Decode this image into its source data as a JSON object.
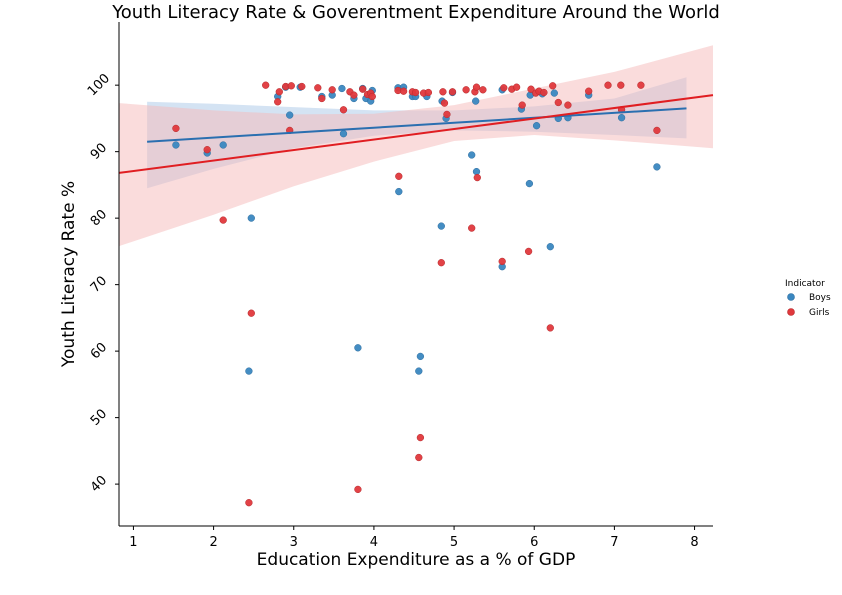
{
  "chart_data": {
    "type": "scatter",
    "title": "Youth Literacy Rate & Goverentment Expenditure Around the World",
    "xlabel": "Education Expenditure as a % of GDP",
    "ylabel": "Youth Literacy Rate %",
    "xlim": [
      0.82,
      8.23
    ],
    "ylim": [
      33.7,
      109.5
    ],
    "xticks": [
      "1",
      "2",
      "3",
      "4",
      "5",
      "6",
      "7",
      "8"
    ],
    "yticks": [
      "40",
      "50",
      "60",
      "70",
      "80",
      "90",
      "100"
    ],
    "grid": false,
    "legend": {
      "title": "Indicator",
      "placement": "right",
      "entries": [
        "Boys",
        "Girls"
      ]
    },
    "series": [
      {
        "name": "Boys",
        "color": "#3a87c0",
        "line_color": "#2a6fb0",
        "band_color": "#a9c8e8",
        "regression": {
          "x": [
            1.17,
            7.9
          ],
          "y": [
            91.5,
            96.5
          ]
        },
        "band": {
          "x": [
            1.17,
            2.0,
            3.0,
            4.0,
            5.0,
            6.0,
            7.0,
            7.9
          ],
          "upper": [
            97.5,
            97.2,
            96.7,
            96.2,
            96.2,
            96.8,
            98.0,
            101.2
          ],
          "lower": [
            84.5,
            87.4,
            90.5,
            92.4,
            93.2,
            93.0,
            92.5,
            92.0
          ]
        },
        "points": [
          {
            "x": 1.53,
            "y": 91.0
          },
          {
            "x": 1.92,
            "y": 89.8
          },
          {
            "x": 2.12,
            "y": 91.0
          },
          {
            "x": 2.44,
            "y": 57.0
          },
          {
            "x": 2.47,
            "y": 80.0
          },
          {
            "x": 2.8,
            "y": 98.3
          },
          {
            "x": 2.9,
            "y": 99.7
          },
          {
            "x": 2.95,
            "y": 95.5
          },
          {
            "x": 3.08,
            "y": 99.7
          },
          {
            "x": 3.35,
            "y": 98.3
          },
          {
            "x": 3.48,
            "y": 98.5
          },
          {
            "x": 3.6,
            "y": 99.5
          },
          {
            "x": 3.62,
            "y": 92.7
          },
          {
            "x": 3.75,
            "y": 98.0
          },
          {
            "x": 3.8,
            "y": 60.5
          },
          {
            "x": 3.86,
            "y": 99.5
          },
          {
            "x": 3.9,
            "y": 98.0
          },
          {
            "x": 3.96,
            "y": 97.6
          },
          {
            "x": 3.98,
            "y": 99.2
          },
          {
            "x": 4.3,
            "y": 99.6
          },
          {
            "x": 4.31,
            "y": 84.0
          },
          {
            "x": 4.37,
            "y": 99.7
          },
          {
            "x": 4.48,
            "y": 98.3
          },
          {
            "x": 4.52,
            "y": 98.3
          },
          {
            "x": 4.56,
            "y": 57.0
          },
          {
            "x": 4.58,
            "y": 59.2
          },
          {
            "x": 4.66,
            "y": 98.3
          },
          {
            "x": 4.84,
            "y": 78.8
          },
          {
            "x": 4.85,
            "y": 97.6
          },
          {
            "x": 4.9,
            "y": 95.0
          },
          {
            "x": 4.98,
            "y": 98.9
          },
          {
            "x": 5.22,
            "y": 89.5
          },
          {
            "x": 5.27,
            "y": 97.6
          },
          {
            "x": 5.28,
            "y": 87.0
          },
          {
            "x": 5.6,
            "y": 72.7
          },
          {
            "x": 5.6,
            "y": 99.3
          },
          {
            "x": 5.84,
            "y": 96.4
          },
          {
            "x": 5.94,
            "y": 85.2
          },
          {
            "x": 5.95,
            "y": 98.5
          },
          {
            "x": 6.03,
            "y": 93.9
          },
          {
            "x": 6.1,
            "y": 98.7
          },
          {
            "x": 6.2,
            "y": 75.7
          },
          {
            "x": 6.25,
            "y": 98.8
          },
          {
            "x": 6.3,
            "y": 95.0
          },
          {
            "x": 6.42,
            "y": 95.1
          },
          {
            "x": 6.68,
            "y": 98.5
          },
          {
            "x": 7.09,
            "y": 95.1
          },
          {
            "x": 7.53,
            "y": 87.7
          }
        ]
      },
      {
        "name": "Girls",
        "color": "#e0383c",
        "line_color": "#e01e22",
        "band_color": "#f6b9b9",
        "regression": {
          "x": [
            0.82,
            8.23
          ],
          "y": [
            86.8,
            98.5
          ]
        },
        "band": {
          "x": [
            0.82,
            2.0,
            3.0,
            4.0,
            5.0,
            6.0,
            7.0,
            8.23
          ],
          "upper": [
            97.3,
            96.2,
            95.6,
            95.7,
            97.0,
            99.5,
            102.0,
            106.0
          ],
          "lower": [
            75.8,
            80.5,
            84.8,
            88.5,
            91.6,
            92.5,
            91.7,
            90.5
          ]
        },
        "points": [
          {
            "x": 1.53,
            "y": 93.5
          },
          {
            "x": 1.92,
            "y": 90.3
          },
          {
            "x": 2.12,
            "y": 79.7
          },
          {
            "x": 2.44,
            "y": 37.2
          },
          {
            "x": 2.47,
            "y": 65.7
          },
          {
            "x": 2.65,
            "y": 100.0
          },
          {
            "x": 2.8,
            "y": 97.5
          },
          {
            "x": 2.82,
            "y": 99.0
          },
          {
            "x": 2.9,
            "y": 99.8
          },
          {
            "x": 2.95,
            "y": 93.2
          },
          {
            "x": 2.97,
            "y": 99.9
          },
          {
            "x": 3.1,
            "y": 99.8
          },
          {
            "x": 3.3,
            "y": 99.6
          },
          {
            "x": 3.35,
            "y": 98.0
          },
          {
            "x": 3.48,
            "y": 99.3
          },
          {
            "x": 3.62,
            "y": 96.3
          },
          {
            "x": 3.7,
            "y": 99.0
          },
          {
            "x": 3.75,
            "y": 98.5
          },
          {
            "x": 3.8,
            "y": 39.2
          },
          {
            "x": 3.86,
            "y": 99.4
          },
          {
            "x": 3.92,
            "y": 98.6
          },
          {
            "x": 3.96,
            "y": 98.8
          },
          {
            "x": 3.98,
            "y": 98.3
          },
          {
            "x": 4.3,
            "y": 99.2
          },
          {
            "x": 4.31,
            "y": 86.3
          },
          {
            "x": 4.37,
            "y": 99.1
          },
          {
            "x": 4.48,
            "y": 99.0
          },
          {
            "x": 4.52,
            "y": 98.9
          },
          {
            "x": 4.56,
            "y": 44.0
          },
          {
            "x": 4.58,
            "y": 47.0
          },
          {
            "x": 4.62,
            "y": 98.8
          },
          {
            "x": 4.68,
            "y": 98.9
          },
          {
            "x": 4.84,
            "y": 73.3
          },
          {
            "x": 4.86,
            "y": 99.0
          },
          {
            "x": 4.88,
            "y": 97.3
          },
          {
            "x": 4.91,
            "y": 95.6
          },
          {
            "x": 4.98,
            "y": 99.0
          },
          {
            "x": 5.15,
            "y": 99.3
          },
          {
            "x": 5.22,
            "y": 78.5
          },
          {
            "x": 5.26,
            "y": 99.0
          },
          {
            "x": 5.28,
            "y": 99.7
          },
          {
            "x": 5.29,
            "y": 86.1
          },
          {
            "x": 5.36,
            "y": 99.3
          },
          {
            "x": 5.6,
            "y": 73.5
          },
          {
            "x": 5.62,
            "y": 99.6
          },
          {
            "x": 5.72,
            "y": 99.4
          },
          {
            "x": 5.78,
            "y": 99.7
          },
          {
            "x": 5.85,
            "y": 97.0
          },
          {
            "x": 5.93,
            "y": 75.0
          },
          {
            "x": 5.96,
            "y": 99.4
          },
          {
            "x": 6.02,
            "y": 98.8
          },
          {
            "x": 6.06,
            "y": 99.1
          },
          {
            "x": 6.12,
            "y": 98.9
          },
          {
            "x": 6.2,
            "y": 63.5
          },
          {
            "x": 6.23,
            "y": 99.9
          },
          {
            "x": 6.3,
            "y": 97.4
          },
          {
            "x": 6.42,
            "y": 97.0
          },
          {
            "x": 6.68,
            "y": 99.1
          },
          {
            "x": 6.92,
            "y": 100.0
          },
          {
            "x": 7.08,
            "y": 100.0
          },
          {
            "x": 7.09,
            "y": 96.3
          },
          {
            "x": 7.33,
            "y": 100.0
          },
          {
            "x": 7.53,
            "y": 93.2
          }
        ]
      }
    ]
  }
}
